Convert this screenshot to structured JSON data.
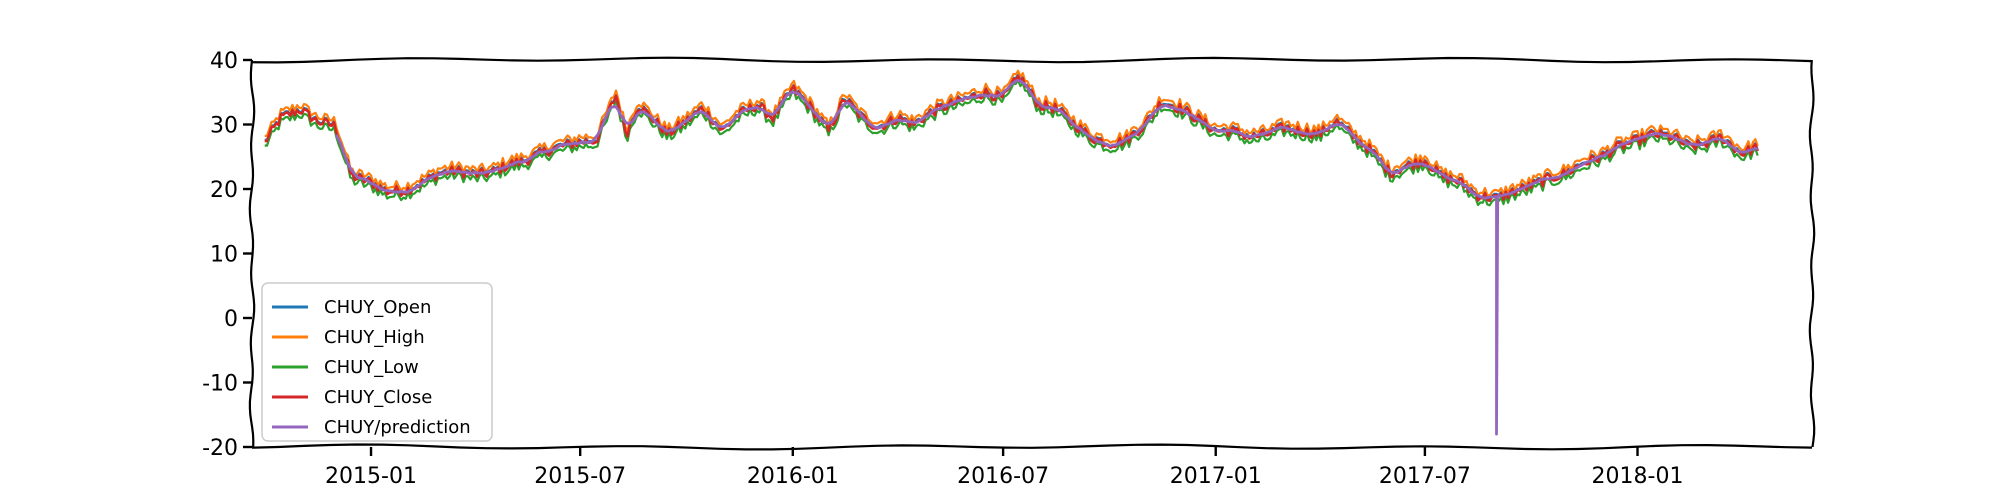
{
  "chart_data": {
    "type": "line",
    "title": "",
    "xlabel": "",
    "ylabel": "",
    "xlim": [
      "2014-09-20",
      "2018-06-01"
    ],
    "ylim": [
      -20,
      40
    ],
    "grid": false,
    "legend_position": "lower-left",
    "x_ticks": [
      "2015-01",
      "2015-07",
      "2016-01",
      "2016-07",
      "2017-01",
      "2017-07",
      "2018-01"
    ],
    "y_ticks": [
      -20,
      -10,
      0,
      10,
      20,
      30,
      40
    ],
    "anchor_dates": [
      "2014-10-01",
      "2014-10-15",
      "2014-11-01",
      "2014-11-15",
      "2014-12-01",
      "2014-12-15",
      "2015-01-01",
      "2015-01-15",
      "2015-02-01",
      "2015-02-15",
      "2015-03-01",
      "2015-03-15",
      "2015-04-01",
      "2015-04-15",
      "2015-05-01",
      "2015-05-15",
      "2015-06-01",
      "2015-06-15",
      "2015-07-01",
      "2015-07-15",
      "2015-08-01",
      "2015-08-10",
      "2015-08-20",
      "2015-09-01",
      "2015-09-15",
      "2015-10-01",
      "2015-10-15",
      "2015-11-01",
      "2015-11-15",
      "2015-12-01",
      "2015-12-15",
      "2016-01-01",
      "2016-01-15",
      "2016-02-01",
      "2016-02-15",
      "2016-03-01",
      "2016-03-15",
      "2016-04-01",
      "2016-04-15",
      "2016-05-01",
      "2016-05-15",
      "2016-06-01",
      "2016-06-15",
      "2016-07-01",
      "2016-07-15",
      "2016-08-01",
      "2016-08-15",
      "2016-09-01",
      "2016-09-15",
      "2016-10-01",
      "2016-10-15",
      "2016-11-01",
      "2016-11-15",
      "2016-12-01",
      "2016-12-15",
      "2017-01-01",
      "2017-01-15",
      "2017-02-01",
      "2017-02-15",
      "2017-03-01",
      "2017-03-15",
      "2017-04-01",
      "2017-04-15",
      "2017-05-01",
      "2017-05-15",
      "2017-06-01",
      "2017-06-15",
      "2017-07-01",
      "2017-07-15",
      "2017-08-01",
      "2017-08-15",
      "2017-09-01",
      "2017-09-15",
      "2017-10-01",
      "2017-10-15",
      "2017-11-01",
      "2017-11-15",
      "2017-12-01",
      "2017-12-15",
      "2018-01-01",
      "2018-01-15",
      "2018-02-01",
      "2018-02-15",
      "2018-03-01",
      "2018-03-15",
      "2018-04-01",
      "2018-04-15"
    ],
    "anchor_close": [
      27.2,
      31.0,
      32.3,
      30.5,
      29.8,
      22.0,
      21.0,
      19.6,
      19.8,
      21.0,
      22.4,
      22.8,
      22.2,
      22.5,
      23.8,
      24.4,
      25.8,
      26.6,
      27.3,
      27.5,
      34.5,
      28.5,
      33.0,
      31.0,
      28.5,
      30.5,
      32.5,
      29.0,
      31.5,
      33.0,
      31.0,
      35.5,
      33.0,
      29.0,
      34.0,
      31.0,
      29.5,
      31.0,
      30.0,
      32.0,
      33.0,
      34.0,
      35.0,
      34.0,
      37.5,
      33.0,
      32.5,
      30.0,
      28.0,
      27.0,
      27.5,
      30.0,
      33.5,
      32.5,
      31.0,
      29.0,
      29.0,
      28.0,
      28.5,
      29.5,
      29.0,
      28.5,
      30.5,
      28.0,
      26.0,
      22.5,
      23.5,
      24.5,
      22.0,
      21.0,
      19.0,
      18.5,
      19.5,
      20.5,
      21.5,
      22.5,
      24.0,
      25.0,
      26.5,
      27.5,
      28.5,
      28.0,
      26.5,
      27.0,
      28.0,
      25.5,
      26.5
    ],
    "series": [
      {
        "name": "CHUY_Open",
        "color": "#1f77b4"
      },
      {
        "name": "CHUY_High",
        "color": "#ff7f0e"
      },
      {
        "name": "CHUY_Low",
        "color": "#2ca02c"
      },
      {
        "name": "CHUY_Close",
        "color": "#d62728"
      },
      {
        "name": "CHUY/prediction",
        "color": "#9467bd",
        "note_points": [
          {
            "x": "2017-09-01",
            "y": -18
          }
        ],
        "starts": "2014-12-01"
      }
    ]
  }
}
